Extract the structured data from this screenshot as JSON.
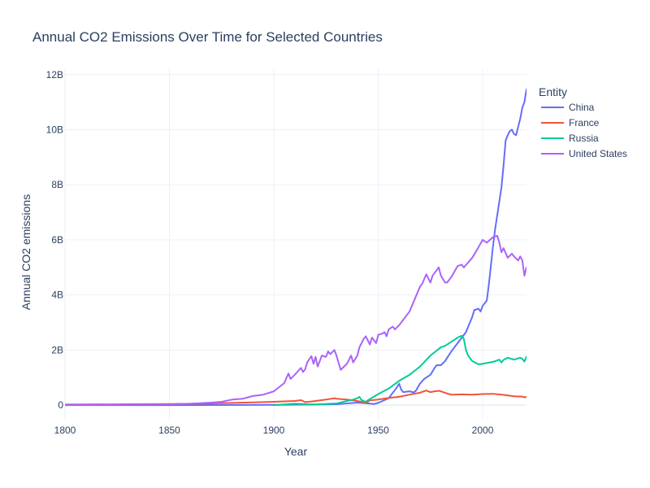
{
  "chart_data": {
    "type": "line",
    "title": "Annual CO2 Emissions Over Time for Selected Countries",
    "xlabel": "Year",
    "ylabel": "Annual CO2 emissions",
    "xlim": [
      1800,
      2021
    ],
    "ylim": [
      -500000000,
      12200000000
    ],
    "x_ticks": [
      1800,
      1850,
      1900,
      1950,
      2000
    ],
    "x_tick_labels": [
      "1800",
      "1850",
      "1900",
      "1950",
      "2000"
    ],
    "y_ticks": [
      0,
      2000000000,
      4000000000,
      6000000000,
      8000000000,
      10000000000,
      12000000000
    ],
    "y_tick_labels": [
      "0",
      "2B",
      "4B",
      "6B",
      "8B",
      "10B",
      "12B"
    ],
    "grid": true,
    "legend": {
      "title": "Entity",
      "placement": "right"
    },
    "series": [
      {
        "name": "China",
        "color": "#636efa",
        "x": [
          1800,
          1850,
          1900,
          1930,
          1940,
          1945,
          1948,
          1950,
          1955,
          1957,
          1959,
          1960,
          1961,
          1962,
          1965,
          1967,
          1968,
          1970,
          1972,
          1975,
          1977,
          1978,
          1980,
          1982,
          1985,
          1988,
          1990,
          1992,
          1995,
          1996,
          1998,
          1999,
          2000,
          2002,
          2003,
          2004,
          2005,
          2006,
          2007,
          2008,
          2009,
          2010,
          2011,
          2012,
          2013,
          2014,
          2015,
          2016,
          2017,
          2018,
          2019,
          2020,
          2021
        ],
        "y": [
          0,
          0,
          10000000,
          30000000,
          90000000,
          60000000,
          40000000,
          80000000,
          250000000,
          450000000,
          650000000,
          780000000,
          560000000,
          470000000,
          500000000,
          460000000,
          520000000,
          780000000,
          950000000,
          1100000000,
          1350000000,
          1450000000,
          1450000000,
          1600000000,
          1950000000,
          2250000000,
          2450000000,
          2650000000,
          3200000000,
          3450000000,
          3500000000,
          3400000000,
          3600000000,
          3800000000,
          4400000000,
          5100000000,
          5800000000,
          6400000000,
          6900000000,
          7400000000,
          7900000000,
          8700000000,
          9600000000,
          9800000000,
          9950000000,
          10000000000,
          9850000000,
          9800000000,
          10100000000,
          10400000000,
          10800000000,
          11000000000,
          11470000000
        ]
      },
      {
        "name": "France",
        "color": "#EF553B",
        "x": [
          1800,
          1830,
          1850,
          1870,
          1890,
          1900,
          1910,
          1913,
          1915,
          1918,
          1920,
          1925,
          1929,
          1930,
          1935,
          1940,
          1944,
          1946,
          1950,
          1955,
          1960,
          1965,
          1970,
          1973,
          1975,
          1977,
          1979,
          1980,
          1983,
          1985,
          1990,
          1995,
          2000,
          2005,
          2010,
          2015,
          2019,
          2020,
          2021
        ],
        "y": [
          20000000,
          30000000,
          40000000,
          60000000,
          100000000,
          120000000,
          150000000,
          180000000,
          110000000,
          130000000,
          150000000,
          200000000,
          250000000,
          230000000,
          200000000,
          150000000,
          80000000,
          170000000,
          200000000,
          260000000,
          300000000,
          380000000,
          450000000,
          530000000,
          470000000,
          500000000,
          520000000,
          500000000,
          420000000,
          380000000,
          390000000,
          380000000,
          400000000,
          410000000,
          370000000,
          320000000,
          310000000,
          280000000,
          300000000
        ]
      },
      {
        "name": "Russia",
        "color": "#00cc96",
        "x": [
          1900,
          1910,
          1920,
          1930,
          1935,
          1938,
          1940,
          1941,
          1942,
          1944,
          1946,
          1950,
          1955,
          1960,
          1965,
          1970,
          1975,
          1980,
          1982,
          1985,
          1987,
          1988,
          1990,
          1991,
          1992,
          1993,
          1995,
          1998,
          2000,
          2005,
          2008,
          2009,
          2010,
          2012,
          2015,
          2018,
          2019,
          2020,
          2021
        ],
        "y": [
          0,
          50000000,
          20000000,
          60000000,
          150000000,
          200000000,
          250000000,
          300000000,
          180000000,
          120000000,
          220000000,
          400000000,
          600000000,
          880000000,
          1100000000,
          1400000000,
          1800000000,
          2100000000,
          2150000000,
          2300000000,
          2400000000,
          2450000000,
          2520000000,
          2400000000,
          2000000000,
          1800000000,
          1600000000,
          1480000000,
          1500000000,
          1570000000,
          1650000000,
          1550000000,
          1640000000,
          1720000000,
          1650000000,
          1720000000,
          1680000000,
          1580000000,
          1760000000
        ]
      },
      {
        "name": "United States",
        "color": "#ab63fa",
        "x": [
          1800,
          1830,
          1850,
          1860,
          1870,
          1875,
          1880,
          1885,
          1890,
          1895,
          1900,
          1905,
          1907,
          1908,
          1910,
          1913,
          1914,
          1915,
          1916,
          1918,
          1919,
          1920,
          1921,
          1923,
          1925,
          1926,
          1927,
          1929,
          1930,
          1932,
          1935,
          1937,
          1938,
          1940,
          1941,
          1943,
          1944,
          1945,
          1946,
          1947,
          1949,
          1950,
          1952,
          1953,
          1954,
          1955,
          1957,
          1958,
          1960,
          1965,
          1970,
          1971,
          1973,
          1975,
          1976,
          1978,
          1979,
          1980,
          1982,
          1983,
          1985,
          1988,
          1990,
          1991,
          1995,
          1997,
          2000,
          2002,
          2005,
          2007,
          2008,
          2009,
          2010,
          2012,
          2014,
          2015,
          2017,
          2018,
          2019,
          2020,
          2021
        ],
        "y": [
          5000000,
          15000000,
          30000000,
          50000000,
          90000000,
          120000000,
          200000000,
          230000000,
          330000000,
          380000000,
          500000000,
          800000000,
          1150000000,
          950000000,
          1100000000,
          1350000000,
          1200000000,
          1300000000,
          1550000000,
          1780000000,
          1500000000,
          1750000000,
          1400000000,
          1800000000,
          1750000000,
          1950000000,
          1850000000,
          2000000000,
          1800000000,
          1280000000,
          1500000000,
          1800000000,
          1550000000,
          1800000000,
          2100000000,
          2400000000,
          2500000000,
          2350000000,
          2200000000,
          2450000000,
          2250000000,
          2550000000,
          2600000000,
          2650000000,
          2500000000,
          2750000000,
          2850000000,
          2750000000,
          2900000000,
          3400000000,
          4300000000,
          4400000000,
          4750000000,
          4450000000,
          4700000000,
          4900000000,
          5000000000,
          4700000000,
          4450000000,
          4450000000,
          4650000000,
          5050000000,
          5100000000,
          5000000000,
          5350000000,
          5600000000,
          6000000000,
          5900000000,
          6100000000,
          6150000000,
          5900000000,
          5550000000,
          5700000000,
          5350000000,
          5500000000,
          5400000000,
          5250000000,
          5400000000,
          5250000000,
          4700000000,
          5000000000
        ]
      }
    ]
  }
}
